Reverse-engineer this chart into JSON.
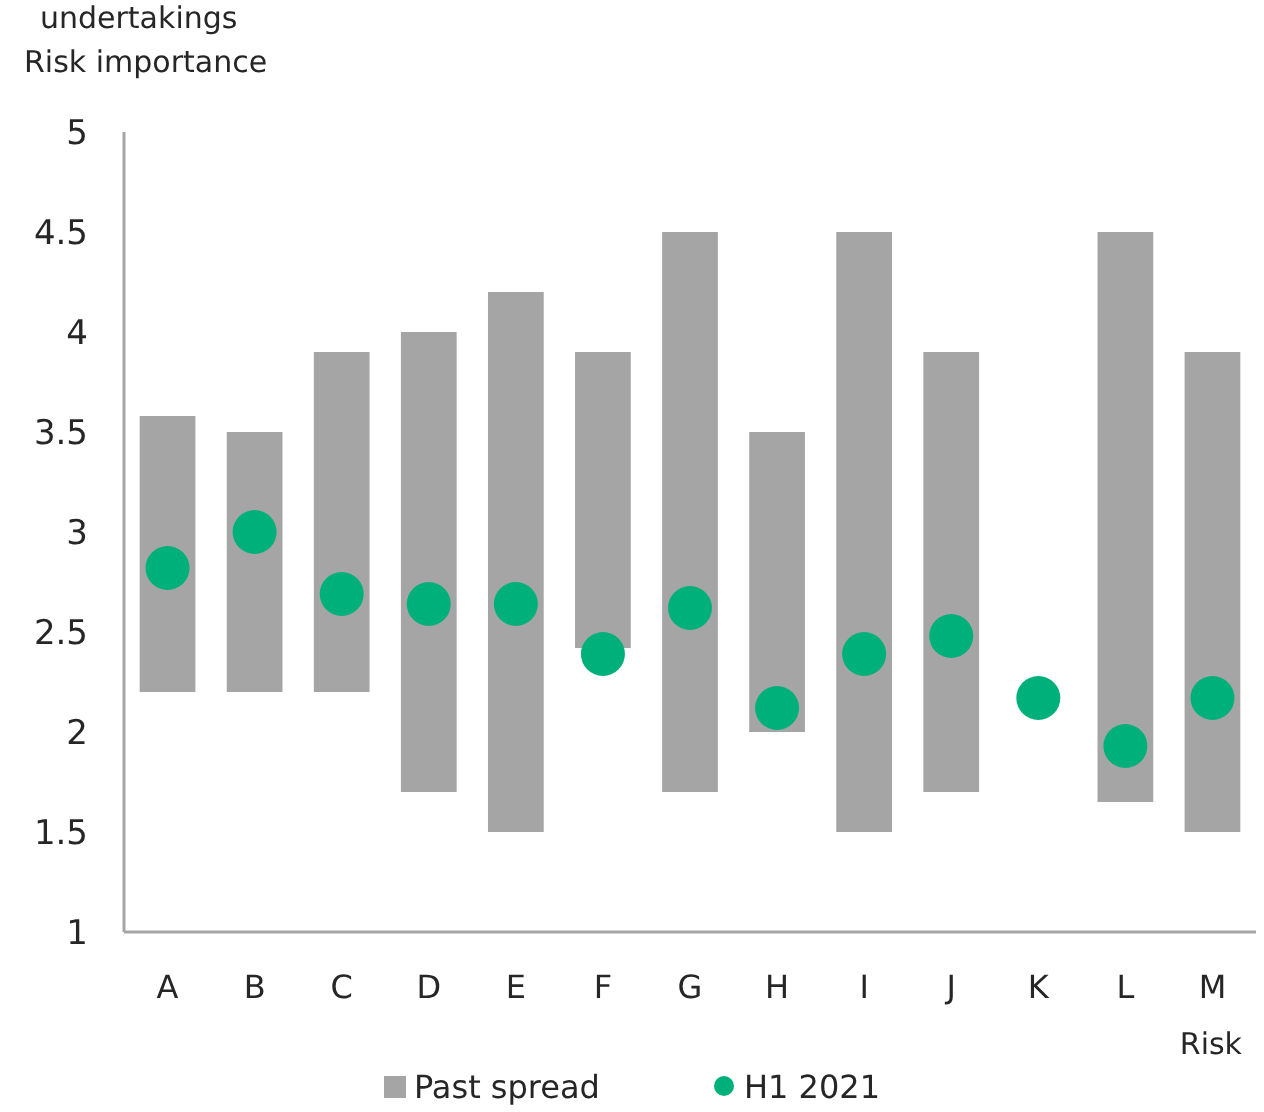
{
  "chart_data": {
    "type": "bar",
    "title": "undertakings",
    "ylabel": "Risk importance",
    "xlabel": "Risk",
    "categories": [
      "A",
      "B",
      "C",
      "D",
      "E",
      "F",
      "G",
      "H",
      "I",
      "J",
      "K",
      "L",
      "M"
    ],
    "series": [
      {
        "name": "Past spread",
        "color": "#a5a5a5",
        "base": [
          2.2,
          2.2,
          2.2,
          1.7,
          1.5,
          2.42,
          1.7,
          2.0,
          1.5,
          1.7,
          null,
          1.65,
          1.5
        ],
        "values": [
          1.38,
          1.3,
          1.7,
          2.3,
          2.7,
          1.48,
          2.8,
          1.5,
          3.0,
          2.2,
          null,
          2.85,
          2.4
        ]
      },
      {
        "name": "H1 2021",
        "type": "scatter",
        "color": "#00b07a",
        "values": [
          2.82,
          3.0,
          2.69,
          2.64,
          2.64,
          2.39,
          2.62,
          2.12,
          2.39,
          2.48,
          2.17,
          1.93,
          2.17
        ]
      }
    ],
    "ylim": [
      1,
      5
    ],
    "yticks": [
      1,
      1.5,
      2,
      2.5,
      3,
      3.5,
      4,
      4.5,
      5
    ],
    "grid": false,
    "legend": "bottom",
    "marker": "circle"
  }
}
